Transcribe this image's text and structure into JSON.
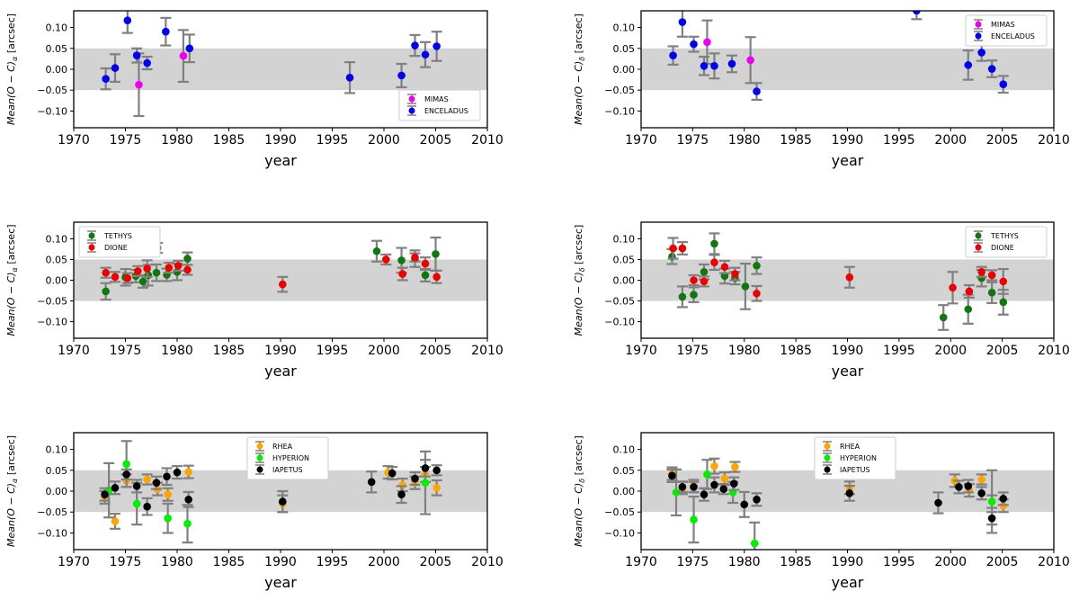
{
  "colors": {
    "band": "#d3d3d3",
    "errorbar": "#808080",
    "MIMAS": "#ee00ee",
    "ENCELADUS": "#0000ee",
    "TETHYS": "#117711",
    "DIONE": "#ee0000",
    "RHEA": "#ffa500",
    "HYPERION": "#00ee00",
    "IAPETUS": "#000000"
  },
  "chart_data": [
    {
      "id": "enc-ra",
      "type": "scatter",
      "xlabel": "year",
      "ylabel_parts": [
        "Mean(O − C)",
        "α",
        " [arcsec]"
      ],
      "xlim": [
        1970,
        2010
      ],
      "ylim": [
        -0.14,
        0.14
      ],
      "xticks": [
        1970,
        1975,
        1980,
        1985,
        1990,
        1995,
        2000,
        2005,
        2010
      ],
      "yticks": [
        0.1,
        0.05,
        0.0,
        -0.05,
        -0.1
      ],
      "ytick_labels": [
        "0.10",
        "0.05",
        "0.00",
        "−0.05",
        "−0.10"
      ],
      "band": [
        -0.05,
        0.05
      ],
      "legend_position": "lower-right",
      "series": [
        {
          "name": "MIMAS",
          "x": [
            1976.3,
            1980.6
          ],
          "y": [
            -0.037,
            0.032
          ],
          "err": [
            0.075,
            0.062
          ]
        },
        {
          "name": "ENCELADUS",
          "x": [
            1973.1,
            1974.0,
            1975.2,
            1976.1,
            1977.1,
            1978.9,
            1981.2,
            1996.7,
            2001.7,
            2003.0,
            2004.0,
            2005.1
          ],
          "y": [
            -0.023,
            0.003,
            0.117,
            0.033,
            0.015,
            0.09,
            0.05,
            -0.02,
            -0.015,
            0.057,
            0.035,
            0.055
          ],
          "err": [
            0.025,
            0.033,
            0.03,
            0.017,
            0.015,
            0.033,
            0.033,
            0.037,
            0.028,
            0.025,
            0.03,
            0.035
          ]
        }
      ]
    },
    {
      "id": "enc-dec",
      "type": "scatter",
      "xlabel": "year",
      "ylabel_parts": [
        "Mean(O − C)",
        "δ",
        " [arcsec]"
      ],
      "xlim": [
        1970,
        2010
      ],
      "ylim": [
        -0.14,
        0.14
      ],
      "xticks": [
        1970,
        1975,
        1980,
        1985,
        1990,
        1995,
        2000,
        2005,
        2010
      ],
      "yticks": [
        0.1,
        0.05,
        0.0,
        -0.05,
        -0.1
      ],
      "ytick_labels": [
        "0.10",
        "0.05",
        "0.00",
        "−0.05",
        "−0.10"
      ],
      "band": [
        -0.05,
        0.05
      ],
      "legend_position": "top-right",
      "series": [
        {
          "name": "MIMAS",
          "x": [
            1976.4,
            1980.6
          ],
          "y": [
            0.065,
            0.022
          ],
          "err": [
            0.052,
            0.055
          ]
        },
        {
          "name": "ENCELADUS",
          "x": [
            1973.1,
            1974.0,
            1975.1,
            1976.1,
            1977.1,
            1978.8,
            1981.2,
            1996.7,
            2001.7,
            2003.0,
            2004.0,
            2005.1
          ],
          "y": [
            0.033,
            0.113,
            0.06,
            0.008,
            0.008,
            0.013,
            -0.053,
            0.14,
            0.01,
            0.04,
            0.001,
            -0.036
          ],
          "err": [
            0.022,
            0.035,
            0.018,
            0.022,
            0.03,
            0.02,
            0.02,
            0.02,
            0.035,
            0.02,
            0.02,
            0.02
          ]
        }
      ]
    },
    {
      "id": "tethys-ra",
      "type": "scatter",
      "xlabel": "year",
      "ylabel_parts": [
        "Mean(O − C)",
        "α",
        " [arcsec]"
      ],
      "xlim": [
        1970,
        2010
      ],
      "ylim": [
        -0.14,
        0.14
      ],
      "xticks": [
        1970,
        1975,
        1980,
        1985,
        1990,
        1995,
        2000,
        2005,
        2010
      ],
      "yticks": [
        0.1,
        0.05,
        0.0,
        -0.05,
        -0.1
      ],
      "ytick_labels": [
        "0.10",
        "0.05",
        "0.00",
        "−0.05",
        "−0.10"
      ],
      "band": [
        -0.05,
        0.05
      ],
      "legend_position": "top-left",
      "series": [
        {
          "name": "TETHYS",
          "x": [
            1973.1,
            1975.0,
            1976.0,
            1976.7,
            1977.2,
            1978.0,
            1979.0,
            1980.0,
            1981.0,
            1999.3,
            2001.7,
            2003.0,
            2004.0,
            2005.0
          ],
          "y": [
            -0.027,
            0.007,
            0.01,
            -0.003,
            0.012,
            0.018,
            0.013,
            0.02,
            0.052,
            0.07,
            0.048,
            0.052,
            0.012,
            0.063
          ],
          "err": [
            0.02,
            0.02,
            0.015,
            0.015,
            0.025,
            0.02,
            0.015,
            0.02,
            0.015,
            0.025,
            0.03,
            0.02,
            0.015,
            0.04
          ]
        },
        {
          "name": "DIONE",
          "x": [
            1973.1,
            1974.0,
            1975.2,
            1976.2,
            1977.1,
            1978.1,
            1979.2,
            1980.1,
            1981.0,
            1990.2,
            2000.2,
            2001.8,
            2003.0,
            2004.0,
            2005.1
          ],
          "y": [
            0.018,
            0.008,
            0.005,
            0.022,
            0.028,
            0.078,
            0.03,
            0.035,
            0.025,
            -0.01,
            0.05,
            0.015,
            0.055,
            0.04,
            0.008
          ],
          "err": [
            0.012,
            0.012,
            0.012,
            0.012,
            0.02,
            0.012,
            0.012,
            0.012,
            0.012,
            0.018,
            0.012,
            0.015,
            0.01,
            0.015,
            0.015
          ]
        }
      ]
    },
    {
      "id": "tethys-dec",
      "type": "scatter",
      "xlabel": "year",
      "ylabel_parts": [
        "Mean(O − C)",
        "δ",
        " [arcsec]"
      ],
      "xlim": [
        1970,
        2010
      ],
      "ylim": [
        -0.14,
        0.14
      ],
      "xticks": [
        1970,
        1975,
        1980,
        1985,
        1990,
        1995,
        2000,
        2005,
        2010
      ],
      "yticks": [
        0.1,
        0.05,
        0.0,
        -0.05,
        -0.1
      ],
      "ytick_labels": [
        "0.10",
        "0.05",
        "0.00",
        "−0.05",
        "−0.10"
      ],
      "band": [
        -0.05,
        0.05
      ],
      "legend_position": "top-right",
      "series": [
        {
          "name": "TETHYS",
          "x": [
            1973.0,
            1974.0,
            1975.1,
            1976.1,
            1977.1,
            1978.1,
            1979.1,
            1980.1,
            1981.2,
            1999.3,
            2001.7,
            2003.0,
            2004.0,
            2005.1
          ],
          "y": [
            0.057,
            -0.04,
            -0.035,
            0.02,
            0.088,
            0.01,
            0.005,
            -0.015,
            0.035,
            -0.09,
            -0.07,
            0.005,
            -0.03,
            -0.053
          ],
          "err": [
            0.018,
            0.025,
            0.018,
            0.018,
            0.025,
            0.018,
            0.015,
            0.055,
            0.02,
            0.03,
            0.035,
            0.02,
            0.025,
            0.03
          ]
        },
        {
          "name": "DIONE",
          "x": [
            1973.1,
            1974.0,
            1975.1,
            1976.1,
            1977.1,
            1978.1,
            1979.1,
            1981.2,
            1990.2,
            2000.2,
            2001.8,
            2003.0,
            2004.0,
            2005.1
          ],
          "y": [
            0.077,
            0.077,
            0.0,
            -0.003,
            0.043,
            0.032,
            0.015,
            -0.032,
            0.007,
            -0.018,
            -0.027,
            0.02,
            0.012,
            -0.003
          ],
          "err": [
            0.025,
            0.015,
            0.012,
            0.012,
            0.018,
            0.015,
            0.015,
            0.018,
            0.025,
            0.038,
            0.015,
            0.012,
            0.012,
            0.03
          ]
        }
      ]
    },
    {
      "id": "rhea-ra",
      "type": "scatter",
      "xlabel": "year",
      "ylabel_parts": [
        "Mean(O − C)",
        "α",
        " [arcsec]"
      ],
      "xlim": [
        1970,
        2010
      ],
      "ylim": [
        -0.14,
        0.14
      ],
      "xticks": [
        1970,
        1975,
        1980,
        1985,
        1990,
        1995,
        2000,
        2005,
        2010
      ],
      "yticks": [
        0.1,
        0.05,
        0.0,
        -0.05,
        -0.1
      ],
      "ytick_labels": [
        "0.10",
        "0.05",
        "0.00",
        "−0.05",
        "−0.10"
      ],
      "band": [
        -0.05,
        0.05
      ],
      "legend_position": "top-center",
      "series": [
        {
          "name": "RHEA",
          "x": [
            1973.0,
            1974.0,
            1975.1,
            1977.1,
            1978.1,
            1979.1,
            1981.1,
            1990.2,
            2000.4,
            2001.8,
            2003.0,
            2004.0,
            2005.1
          ],
          "y": [
            -0.015,
            -0.072,
            0.025,
            0.028,
            0.005,
            -0.008,
            0.046,
            -0.03,
            0.045,
            0.015,
            0.02,
            0.04,
            0.008
          ],
          "err": [
            0.015,
            0.018,
            0.015,
            0.012,
            0.015,
            0.015,
            0.015,
            0.02,
            0.015,
            0.015,
            0.015,
            0.018,
            0.018
          ]
        },
        {
          "name": "HYPERION",
          "x": [
            1973.4,
            1975.1,
            1976.1,
            1979.1,
            1981.0,
            2004.0
          ],
          "y": [
            0.002,
            0.065,
            -0.03,
            -0.065,
            -0.078,
            0.02
          ],
          "err": [
            0.065,
            0.055,
            0.05,
            0.035,
            0.045,
            0.075
          ]
        },
        {
          "name": "IAPETUS",
          "x": [
            1973.0,
            1974.0,
            1975.1,
            1976.1,
            1977.1,
            1978.0,
            1979.0,
            1980.0,
            1981.1,
            1990.2,
            1998.8,
            2000.8,
            2001.7,
            2003.0,
            2004.0,
            2005.1
          ],
          "y": [
            -0.008,
            0.008,
            0.04,
            0.012,
            -0.037,
            0.02,
            0.035,
            0.045,
            -0.02,
            -0.025,
            0.022,
            0.043,
            -0.008,
            0.03,
            0.055,
            0.05
          ],
          "err": [
            0.015,
            0.015,
            0.012,
            0.015,
            0.02,
            0.015,
            0.02,
            0.015,
            0.018,
            0.025,
            0.025,
            0.015,
            0.02,
            0.015,
            0.02,
            0.012
          ]
        }
      ]
    },
    {
      "id": "rhea-dec",
      "type": "scatter",
      "xlabel": "year",
      "ylabel_parts": [
        "Mean(O − C)",
        "δ",
        " [arcsec]"
      ],
      "xlim": [
        1970,
        2010
      ],
      "ylim": [
        -0.14,
        0.14
      ],
      "xticks": [
        1970,
        1975,
        1980,
        1985,
        1990,
        1995,
        2000,
        2005,
        2010
      ],
      "yticks": [
        0.1,
        0.05,
        0.0,
        -0.05,
        -0.1
      ],
      "ytick_labels": [
        "0.10",
        "0.05",
        "0.00",
        "−0.05",
        "−0.10"
      ],
      "band": [
        -0.05,
        0.05
      ],
      "legend_position": "top-center",
      "series": [
        {
          "name": "RHEA",
          "x": [
            1973.0,
            1974.0,
            1975.1,
            1977.1,
            1978.1,
            1979.1,
            1990.2,
            2000.4,
            2001.8,
            2003.0,
            2004.0,
            2005.1
          ],
          "y": [
            0.042,
            0.008,
            0.012,
            0.06,
            0.03,
            0.058,
            0.008,
            0.025,
            0.002,
            0.028,
            -0.025,
            -0.035
          ],
          "err": [
            0.015,
            0.015,
            0.015,
            0.018,
            0.015,
            0.012,
            0.015,
            0.015,
            0.015,
            0.012,
            0.015,
            0.015
          ]
        },
        {
          "name": "HYPERION",
          "x": [
            1973.4,
            1975.1,
            1976.4,
            1978.9,
            1981.0,
            2004.0
          ],
          "y": [
            -0.003,
            -0.068,
            0.04,
            -0.003,
            -0.125,
            -0.025
          ],
          "err": [
            0.055,
            0.055,
            0.035,
            0.025,
            0.05,
            0.075
          ]
        },
        {
          "name": "IAPETUS",
          "x": [
            1973.0,
            1974.0,
            1975.1,
            1976.1,
            1977.1,
            1978.0,
            1979.0,
            1980.0,
            1981.2,
            1990.2,
            1998.8,
            2000.8,
            2001.7,
            2003.0,
            2004.0,
            2005.1
          ],
          "y": [
            0.037,
            0.01,
            0.01,
            -0.008,
            0.015,
            0.005,
            0.018,
            -0.032,
            -0.02,
            -0.005,
            -0.028,
            0.01,
            0.012,
            -0.005,
            -0.065,
            -0.018
          ],
          "err": [
            0.015,
            0.012,
            0.012,
            0.015,
            0.018,
            0.012,
            0.015,
            0.03,
            0.015,
            0.018,
            0.025,
            0.015,
            0.015,
            0.015,
            0.015,
            0.015
          ]
        }
      ]
    }
  ]
}
